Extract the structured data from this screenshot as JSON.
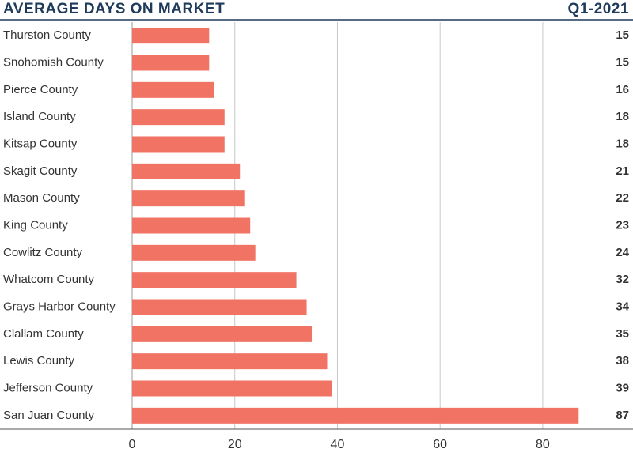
{
  "chart_data": {
    "type": "bar",
    "orientation": "horizontal",
    "title": "AVERAGE DAYS ON MARKET",
    "subtitle": "Q1-2021",
    "categories": [
      "Thurston County",
      "Snohomish County",
      "Pierce County",
      "Island County",
      "Kitsap County",
      "Skagit County",
      "Mason County",
      "King County",
      "Cowlitz County",
      "Whatcom County",
      "Grays Harbor County",
      "Clallam County",
      "Lewis County",
      "Jefferson County",
      "San Juan County"
    ],
    "values": [
      15,
      15,
      16,
      18,
      18,
      21,
      22,
      23,
      24,
      32,
      34,
      35,
      38,
      39,
      87
    ],
    "color": "#f07364",
    "xlim": [
      0,
      92.5
    ],
    "xticks": [
      0,
      20,
      40,
      60,
      80
    ],
    "grid": true
  }
}
